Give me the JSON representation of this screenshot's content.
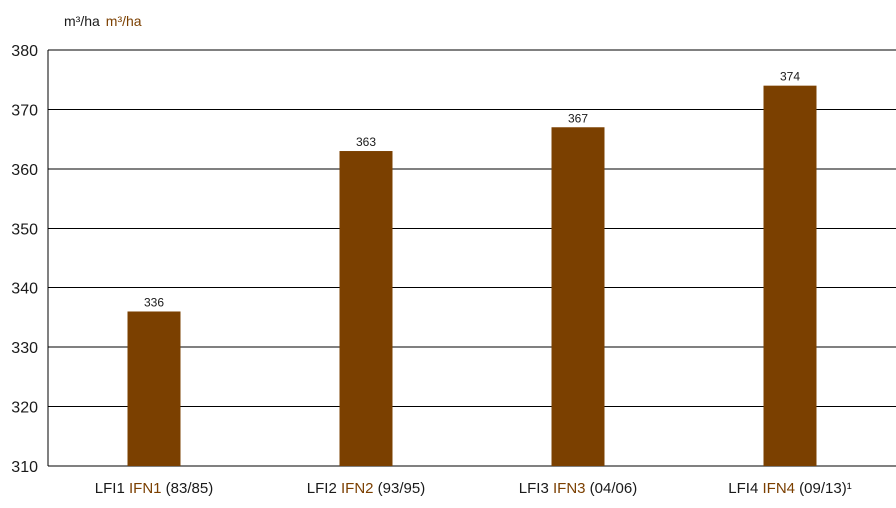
{
  "header": {
    "unit_primary": "m³/ha",
    "unit_secondary": "m³/ha"
  },
  "colors": {
    "bar": "#7b4000",
    "accent_text": "#7b3f00",
    "text": "#1a1a1a",
    "grid": "#000000"
  },
  "chart_data": {
    "type": "bar",
    "categories": [
      "LFI1 IFN1 (83/85)",
      "LFI2 IFN2 (93/95)",
      "LFI3 IFN3 (04/06)",
      "LFI4 IFN4 (09/13)¹"
    ],
    "category_parts": [
      {
        "a": "LFI1",
        "b": "IFN1",
        "c": "(83/85)"
      },
      {
        "a": "LFI2",
        "b": "IFN2",
        "c": "(93/95)"
      },
      {
        "a": "LFI3",
        "b": "IFN3",
        "c": "(04/06)"
      },
      {
        "a": "LFI4",
        "b": "IFN4",
        "c": "(09/13)¹"
      }
    ],
    "values": [
      336,
      363,
      367,
      374
    ],
    "data_labels": [
      "336",
      "363",
      "367",
      "374"
    ],
    "ylim": [
      310,
      380
    ],
    "yticks": [
      310,
      320,
      330,
      340,
      350,
      360,
      370,
      380
    ],
    "ylabel": "m³/ha",
    "grid": true,
    "legend": "none"
  }
}
